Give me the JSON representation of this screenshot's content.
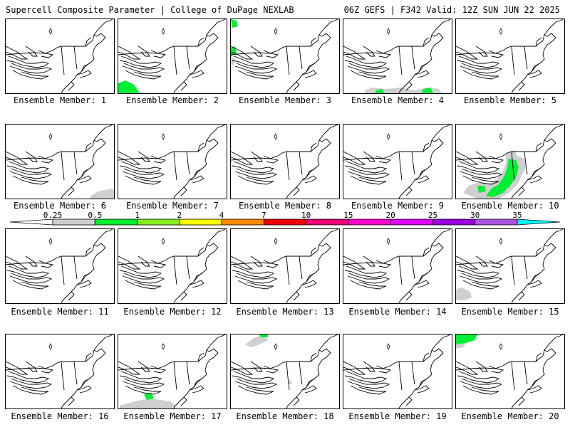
{
  "header": {
    "title_left": "Supercell Composite Parameter | College of DuPage NEXLAB",
    "title_right": "06Z GEFS | F342 Valid: 12Z SUN JUN 22 2025"
  },
  "colors": {
    "gray": "#c8c8c8",
    "green": "#00ee22",
    "yellow": "#ffff00",
    "orange": "#ff8800",
    "red": "#ee0000",
    "magenta": "#ee00aa",
    "purple": "#9900cc",
    "cyan": "#00ffff"
  },
  "colorbar": {
    "labels": [
      "0.25",
      "0.5",
      "1",
      "2",
      "4",
      "7",
      "10",
      "15",
      "20",
      "25",
      "30",
      "35"
    ],
    "segments": [
      {
        "color": "#ffffff"
      },
      {
        "color": "#cfcfcf"
      },
      {
        "color": "#00ee33"
      },
      {
        "color": "#88ee22"
      },
      {
        "color": "#ffff00"
      },
      {
        "color": "#ff8800"
      },
      {
        "color": "#ee0000"
      },
      {
        "color": "#ee0077"
      },
      {
        "color": "#ff00cc"
      },
      {
        "color": "#dd00ff"
      },
      {
        "color": "#9900dd"
      },
      {
        "color": "#aa55dd"
      },
      {
        "color": "#00ffff"
      }
    ]
  },
  "members": [
    {
      "label": "Ensemble Member: 1"
    },
    {
      "label": "Ensemble Member: 2"
    },
    {
      "label": "Ensemble Member: 3"
    },
    {
      "label": "Ensemble Member: 4"
    },
    {
      "label": "Ensemble Member: 5"
    },
    {
      "label": "Ensemble Member: 6"
    },
    {
      "label": "Ensemble Member: 7"
    },
    {
      "label": "Ensemble Member: 8"
    },
    {
      "label": "Ensemble Member: 9"
    },
    {
      "label": "Ensemble Member: 10"
    },
    {
      "label": "Ensemble Member: 11"
    },
    {
      "label": "Ensemble Member: 12"
    },
    {
      "label": "Ensemble Member: 13"
    },
    {
      "label": "Ensemble Member: 14"
    },
    {
      "label": "Ensemble Member: 15"
    },
    {
      "label": "Ensemble Member: 16"
    },
    {
      "label": "Ensemble Member: 17"
    },
    {
      "label": "Ensemble Member: 18"
    },
    {
      "label": "Ensemble Member: 19"
    },
    {
      "label": "Ensemble Member: 20"
    }
  ]
}
